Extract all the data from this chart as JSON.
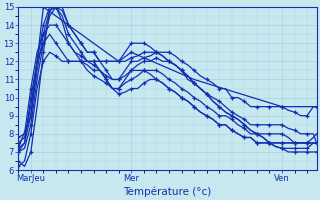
{
  "xlabel": "Température (°c)",
  "ylim": [
    6,
    15
  ],
  "xlim": [
    0,
    95
  ],
  "yticks": [
    6,
    7,
    8,
    9,
    10,
    11,
    12,
    13,
    14,
    15
  ],
  "xtick_positions": [
    4,
    36,
    84
  ],
  "xtick_labels": [
    "MarJeu",
    "Mer",
    "Ven"
  ],
  "bg_color": "#c8e8f0",
  "grid_color": "#a0c8d8",
  "line_color": "#1030b0",
  "series": [
    {
      "x": [
        0,
        2,
        4,
        6,
        8,
        10,
        12,
        14,
        16,
        18,
        20,
        22,
        24,
        26,
        28,
        30,
        32,
        34,
        36,
        38,
        40,
        42,
        44,
        46,
        48,
        50,
        52,
        54,
        56,
        58,
        60,
        62,
        64,
        66,
        68,
        70,
        72,
        74,
        76,
        78,
        80,
        82,
        84,
        86,
        88,
        90,
        92,
        94,
        95
      ],
      "y": [
        7.2,
        7.5,
        9.0,
        11.5,
        13.5,
        14.8,
        15.0,
        14.8,
        14.0,
        13.5,
        13.0,
        12.5,
        12.5,
        12.0,
        11.5,
        11.0,
        11.0,
        11.5,
        12.0,
        12.0,
        12.2,
        12.3,
        12.5,
        12.5,
        12.5,
        12.3,
        12.0,
        11.8,
        11.5,
        11.2,
        11.0,
        10.8,
        10.5,
        10.5,
        10.0,
        10.0,
        9.8,
        9.5,
        9.5,
        9.5,
        9.5,
        9.5,
        9.5,
        9.3,
        9.2,
        9.0,
        9.0,
        9.5,
        9.5
      ]
    },
    {
      "x": [
        0,
        2,
        4,
        6,
        8,
        10,
        12,
        14,
        16,
        18,
        20,
        22,
        24,
        26,
        28,
        30,
        32,
        34,
        36,
        38,
        40,
        42,
        44,
        46,
        48,
        50,
        52,
        54,
        56,
        58,
        60,
        62,
        64,
        66,
        68,
        70,
        72,
        74,
        76,
        78,
        80,
        82,
        84,
        86,
        88,
        90,
        92,
        94,
        95
      ],
      "y": [
        7.0,
        7.2,
        8.5,
        11.0,
        13.0,
        14.5,
        15.0,
        14.5,
        13.5,
        13.0,
        12.5,
        12.0,
        12.0,
        11.5,
        11.0,
        10.5,
        10.5,
        11.0,
        11.5,
        11.8,
        12.0,
        12.0,
        12.2,
        12.0,
        12.0,
        11.8,
        11.5,
        11.0,
        10.8,
        10.5,
        10.2,
        10.0,
        9.8,
        9.5,
        9.2,
        9.0,
        8.8,
        8.5,
        8.5,
        8.5,
        8.5,
        8.5,
        8.5,
        8.3,
        8.2,
        8.0,
        8.0,
        8.0,
        7.5
      ]
    },
    {
      "x": [
        0,
        2,
        4,
        6,
        8,
        10,
        12,
        14,
        16,
        18,
        20,
        22,
        24,
        26,
        28,
        30,
        32,
        34,
        36,
        38,
        40,
        42,
        44,
        46,
        48,
        50,
        52,
        54,
        56,
        58,
        60,
        62,
        64,
        66,
        68,
        70,
        72,
        74,
        76,
        78,
        80,
        82,
        84,
        86,
        88,
        90,
        92,
        94,
        95
      ],
      "y": [
        7.5,
        7.8,
        9.5,
        12.0,
        14.0,
        15.0,
        15.0,
        14.2,
        13.0,
        12.5,
        12.0,
        11.5,
        11.2,
        11.0,
        10.8,
        10.5,
        10.5,
        10.8,
        11.0,
        11.2,
        11.5,
        11.5,
        11.5,
        11.3,
        11.0,
        10.8,
        10.5,
        10.3,
        10.0,
        9.8,
        9.5,
        9.3,
        9.0,
        9.0,
        8.8,
        8.5,
        8.3,
        8.0,
        8.0,
        8.0,
        8.0,
        8.0,
        8.0,
        7.8,
        7.5,
        7.5,
        7.5,
        7.5,
        7.5
      ]
    },
    {
      "x": [
        0,
        2,
        4,
        6,
        8,
        10,
        12,
        14,
        16,
        18,
        20,
        22,
        24,
        26,
        28,
        30,
        32,
        34,
        36,
        38,
        40,
        42,
        44,
        46,
        48,
        50,
        52,
        54,
        56,
        58,
        60,
        62,
        64,
        66,
        68,
        70,
        72,
        74,
        76,
        78,
        80,
        82,
        84,
        86,
        88,
        90,
        92,
        94,
        95
      ],
      "y": [
        6.5,
        6.2,
        7.0,
        9.5,
        12.5,
        14.8,
        15.2,
        15.0,
        14.0,
        13.5,
        13.0,
        12.5,
        12.5,
        12.0,
        12.0,
        12.0,
        12.0,
        12.5,
        13.0,
        13.0,
        13.0,
        12.8,
        12.5,
        12.3,
        12.0,
        11.8,
        11.5,
        11.2,
        10.8,
        10.5,
        10.2,
        9.8,
        9.5,
        9.2,
        9.0,
        8.8,
        8.5,
        8.2,
        8.0,
        7.8,
        7.5,
        7.3,
        7.2,
        7.2,
        7.2,
        7.2,
        7.2,
        7.5,
        7.5
      ]
    },
    {
      "x": [
        0,
        2,
        4,
        6,
        8,
        10,
        12,
        14,
        16,
        18,
        20,
        22,
        24,
        26,
        28,
        30,
        32,
        34,
        36,
        38,
        40,
        42,
        44,
        46,
        48,
        50,
        52,
        54,
        56,
        58,
        60,
        62,
        64,
        66,
        68,
        70,
        72,
        74,
        76,
        78,
        80,
        82,
        84,
        86,
        88,
        90,
        92,
        94,
        95
      ],
      "y": [
        7.0,
        7.5,
        10.0,
        12.0,
        13.0,
        13.5,
        13.0,
        12.5,
        12.0,
        12.0,
        12.0,
        11.8,
        11.5,
        11.5,
        11.2,
        11.0,
        11.0,
        11.2,
        11.5,
        11.5,
        11.5,
        11.3,
        11.0,
        10.8,
        10.5,
        10.3,
        10.0,
        9.8,
        9.5,
        9.2,
        9.0,
        8.8,
        8.5,
        8.5,
        8.2,
        8.0,
        7.8,
        7.8,
        7.5,
        7.5,
        7.5,
        7.5,
        7.5,
        7.5,
        7.5,
        7.5,
        7.5,
        7.8,
        8.0
      ]
    },
    {
      "x": [
        0,
        2,
        4,
        6,
        8,
        10,
        12,
        14,
        16,
        18,
        20,
        22,
        24,
        26,
        28,
        30,
        32,
        34,
        36,
        38,
        40,
        42,
        44,
        46,
        48,
        50,
        52,
        54,
        56,
        58,
        60,
        62,
        64,
        66,
        68,
        70,
        72,
        74,
        76,
        78,
        80,
        82,
        84,
        86,
        88,
        90,
        92,
        94,
        95
      ],
      "y": [
        6.2,
        6.5,
        8.0,
        10.5,
        12.0,
        12.5,
        12.3,
        12.0,
        12.0,
        12.0,
        12.0,
        12.0,
        12.0,
        12.0,
        12.0,
        12.0,
        12.0,
        12.0,
        12.2,
        12.3,
        12.5,
        12.5,
        12.5,
        12.3,
        12.0,
        11.8,
        11.5,
        11.2,
        10.8,
        10.5,
        10.2,
        9.8,
        9.5,
        9.2,
        9.0,
        8.8,
        8.5,
        8.2,
        8.0,
        7.8,
        7.5,
        7.3,
        7.2,
        7.0,
        7.0,
        7.0,
        7.0,
        7.0,
        7.0
      ]
    },
    {
      "x": [
        0,
        2,
        4,
        6,
        8,
        10,
        12,
        14,
        16,
        18,
        20,
        22,
        24,
        26,
        28,
        30,
        32,
        34,
        36,
        38,
        40,
        42,
        44,
        46,
        48,
        50,
        52,
        54,
        56,
        58,
        60,
        62,
        64,
        66,
        68,
        70,
        72,
        74,
        76,
        78,
        80,
        82,
        84,
        86,
        88,
        90,
        92,
        94,
        95
      ],
      "y": [
        7.8,
        8.0,
        10.5,
        12.5,
        13.5,
        14.0,
        14.0,
        13.5,
        13.0,
        12.5,
        12.3,
        12.0,
        11.8,
        11.5,
        11.0,
        10.5,
        10.2,
        10.3,
        10.5,
        10.5,
        10.8,
        11.0,
        11.0,
        10.8,
        10.5,
        10.3,
        10.0,
        9.8,
        9.5,
        9.2,
        9.0,
        8.8,
        8.5,
        8.5,
        8.2,
        8.0,
        7.8,
        7.8,
        7.5,
        7.5,
        7.5,
        7.5,
        7.5,
        7.5,
        7.5,
        7.5,
        7.5,
        7.5,
        7.5
      ]
    },
    {
      "x": [
        0,
        4,
        8,
        32,
        36,
        56,
        84,
        94,
        95
      ],
      "y": [
        7.2,
        9.0,
        15.0,
        12.0,
        12.5,
        11.0,
        9.5,
        9.5,
        9.5
      ]
    }
  ]
}
